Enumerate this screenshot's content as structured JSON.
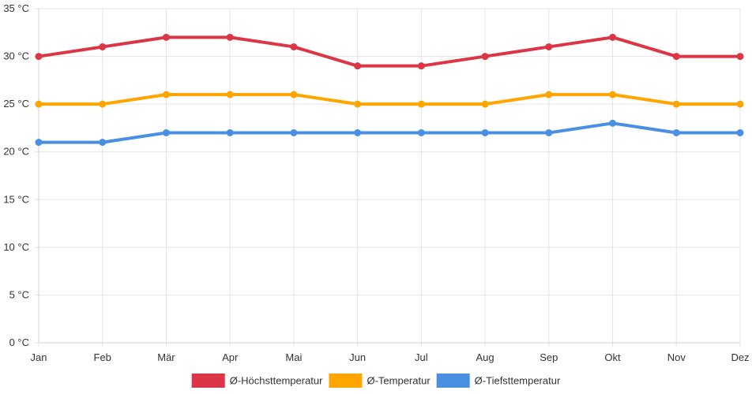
{
  "chart_data": {
    "type": "line",
    "categories": [
      "Jan",
      "Feb",
      "Mär",
      "Apr",
      "Mai",
      "Jun",
      "Jul",
      "Aug",
      "Sep",
      "Okt",
      "Nov",
      "Dez"
    ],
    "y_ticks": [
      "0 °C",
      "5 °C",
      "10 °C",
      "15 °C",
      "20 °C",
      "25 °C",
      "30 °C",
      "35 °C"
    ],
    "ylim": [
      0,
      35
    ],
    "y_step": 5,
    "grid": true,
    "legend_position": "bottom",
    "series": [
      {
        "name": "Ø-Höchsttemperatur",
        "color": "#dc3545",
        "values": [
          30,
          31,
          32,
          32,
          31,
          29,
          29,
          30,
          31,
          32,
          30,
          30
        ]
      },
      {
        "name": "Ø-Temperatur",
        "color": "#ffa500",
        "values": [
          25,
          25,
          26,
          26,
          26,
          25,
          25,
          25,
          26,
          26,
          25,
          25
        ]
      },
      {
        "name": "Ø-Tiefsttemperatur",
        "color": "#4a90e2",
        "values": [
          21,
          21,
          22,
          22,
          22,
          22,
          22,
          22,
          22,
          23,
          22,
          22
        ]
      }
    ]
  }
}
